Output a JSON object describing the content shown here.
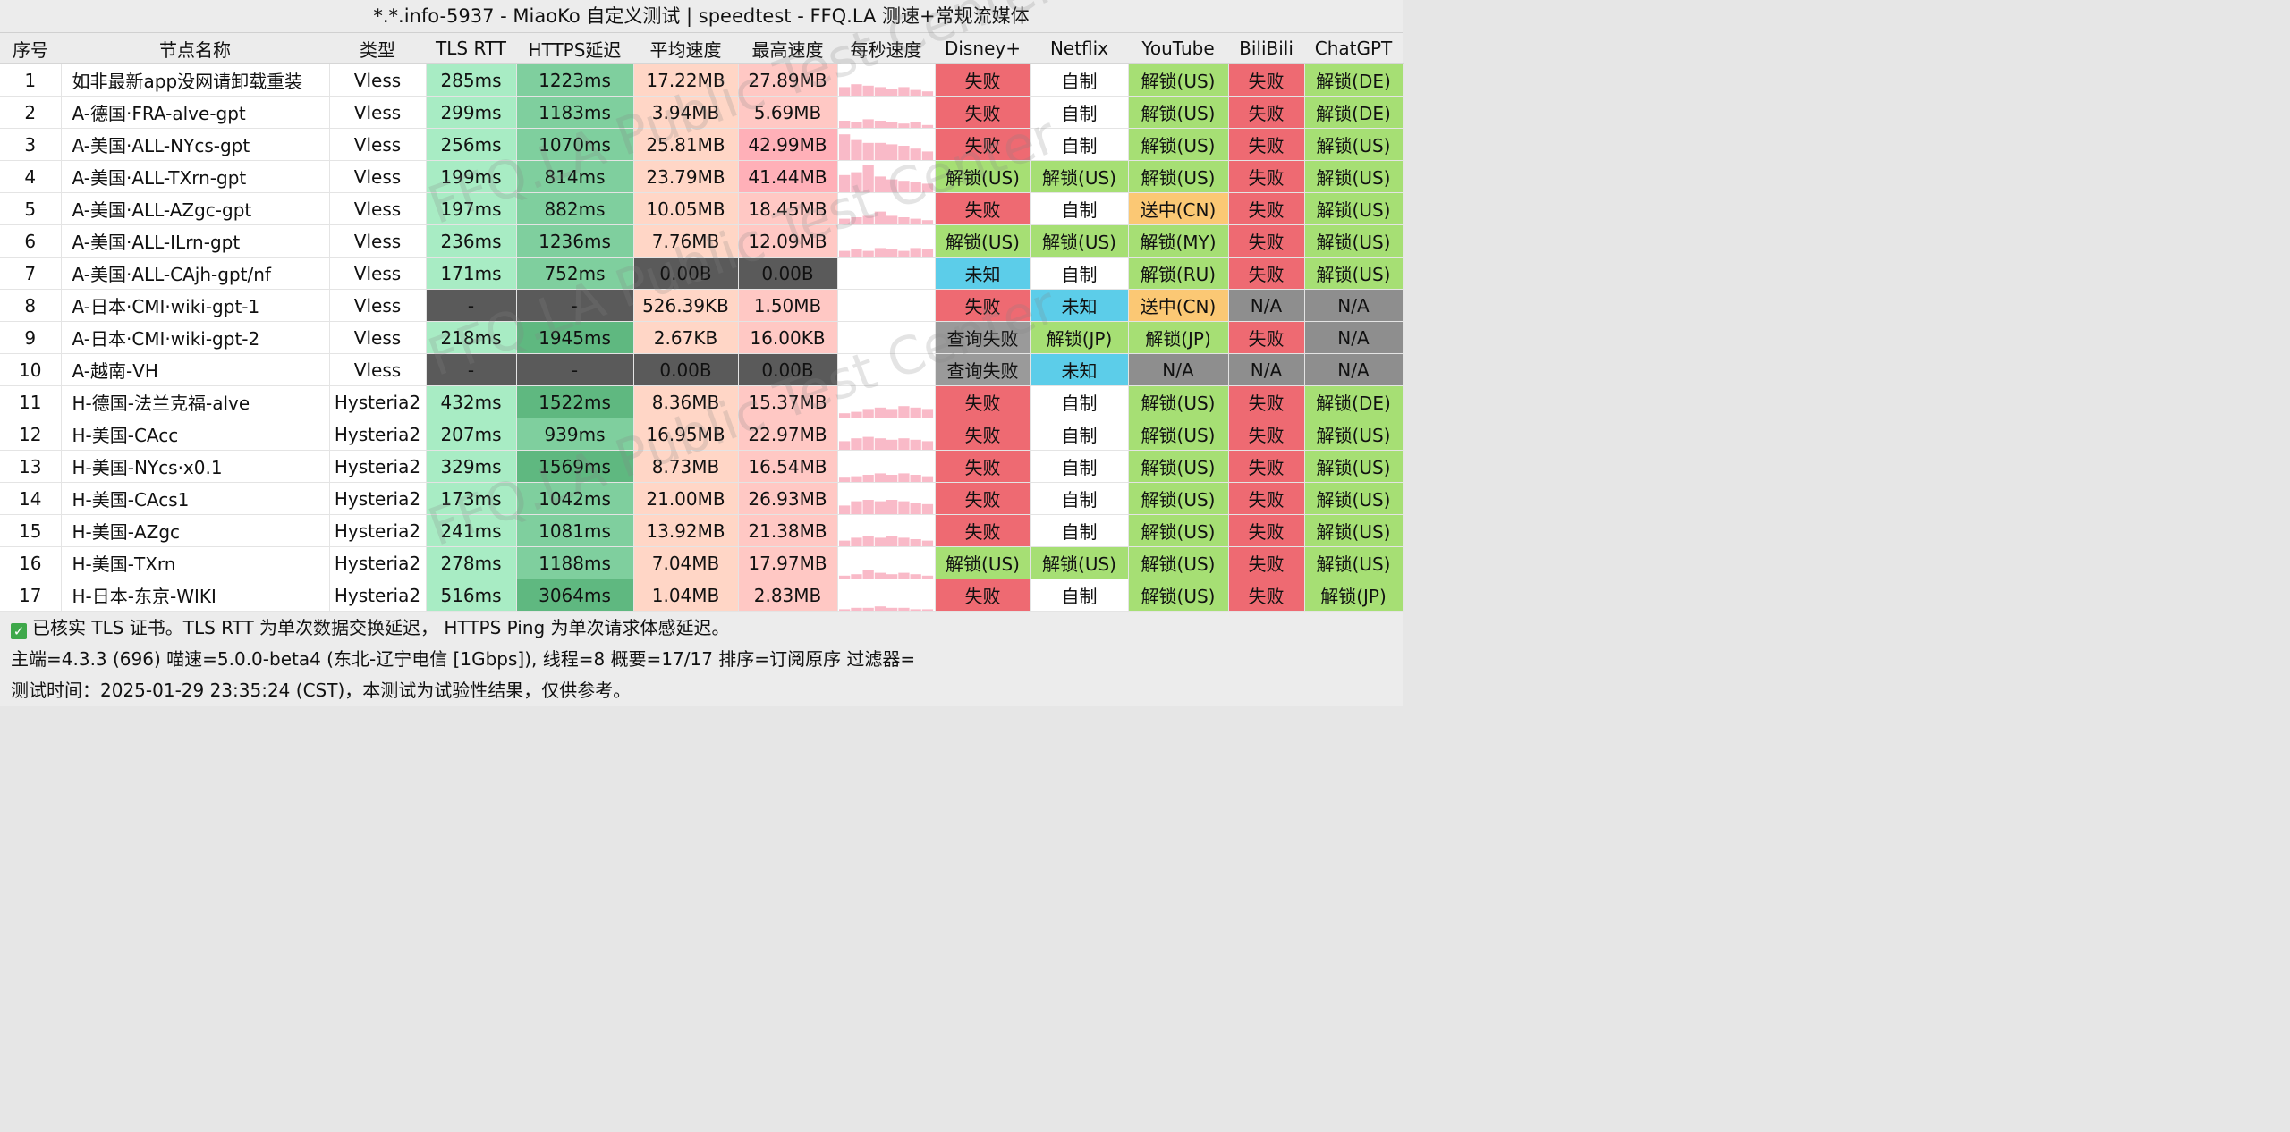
{
  "title": "*.*.info-5937 - MiaoKo 自定义测试 | speedtest - FFQ.LA 测速+常规流媒体",
  "headers": [
    "序号",
    "节点名称",
    "类型",
    "TLS RTT",
    "HTTPS延迟",
    "平均速度",
    "最高速度",
    "每秒速度",
    "Disney+",
    "Netflix",
    "YouTube",
    "BiliBili",
    "ChatGPT"
  ],
  "rows": [
    {
      "no": "1",
      "name": "如非最新app没网请卸载重装",
      "type": "Vless",
      "tls": "285ms",
      "https": "1223ms",
      "avg": "17.22MB",
      "max": "27.89MB",
      "per": [
        0.3,
        0.4,
        0.35,
        0.3,
        0.25,
        0.3,
        0.2,
        0.15
      ],
      "disney": "失败",
      "netflix": "自制",
      "youtube": "解锁(US)",
      "bili": "失败",
      "chatgpt": "解锁(DE)"
    },
    {
      "no": "2",
      "name": "A-德国·FRA-alve-gpt",
      "type": "Vless",
      "tls": "299ms",
      "https": "1183ms",
      "avg": "3.94MB",
      "max": "5.69MB",
      "per": [
        0.25,
        0.2,
        0.3,
        0.25,
        0.2,
        0.15,
        0.2,
        0.1
      ],
      "disney": "失败",
      "netflix": "自制",
      "youtube": "解锁(US)",
      "bili": "失败",
      "chatgpt": "解锁(DE)"
    },
    {
      "no": "3",
      "name": "A-美国·ALL-NYcs-gpt",
      "type": "Vless",
      "tls": "256ms",
      "https": "1070ms",
      "avg": "25.81MB",
      "max": "42.99MB",
      "per": [
        0.9,
        0.7,
        0.6,
        0.6,
        0.55,
        0.5,
        0.4,
        0.3
      ],
      "disney": "失败",
      "netflix": "自制",
      "youtube": "解锁(US)",
      "bili": "失败",
      "chatgpt": "解锁(US)"
    },
    {
      "no": "4",
      "name": "A-美国·ALL-TXrn-gpt",
      "type": "Vless",
      "tls": "199ms",
      "https": "814ms",
      "avg": "23.79MB",
      "max": "41.44MB",
      "per": [
        0.6,
        0.7,
        0.95,
        0.55,
        0.45,
        0.4,
        0.35,
        0.3
      ],
      "disney": "解锁(US)",
      "netflix": "解锁(US)",
      "youtube": "解锁(US)",
      "bili": "失败",
      "chatgpt": "解锁(US)"
    },
    {
      "no": "5",
      "name": "A-美国·ALL-AZgc-gpt",
      "type": "Vless",
      "tls": "197ms",
      "https": "882ms",
      "avg": "10.05MB",
      "max": "18.45MB",
      "per": [
        0.2,
        0.25,
        0.3,
        0.45,
        0.3,
        0.25,
        0.2,
        0.15
      ],
      "disney": "失败",
      "netflix": "自制",
      "youtube": "送中(CN)",
      "bili": "失败",
      "chatgpt": "解锁(US)"
    },
    {
      "no": "6",
      "name": "A-美国·ALL-ILrn-gpt",
      "type": "Vless",
      "tls": "236ms",
      "https": "1236ms",
      "avg": "7.76MB",
      "max": "12.09MB",
      "per": [
        0.2,
        0.25,
        0.2,
        0.3,
        0.25,
        0.2,
        0.3,
        0.25
      ],
      "disney": "解锁(US)",
      "netflix": "解锁(US)",
      "youtube": "解锁(MY)",
      "bili": "失败",
      "chatgpt": "解锁(US)"
    },
    {
      "no": "7",
      "name": "A-美国·ALL-CAjh-gpt/nf",
      "type": "Vless",
      "tls": "171ms",
      "https": "752ms",
      "avg": "0.00B",
      "max": "0.00B",
      "per": [],
      "disney": "未知",
      "netflix": "自制",
      "youtube": "解锁(RU)",
      "bili": "失败",
      "chatgpt": "解锁(US)"
    },
    {
      "no": "8",
      "name": "A-日本·CMI·wiki-gpt-1",
      "type": "Vless",
      "tls": "-",
      "https": "-",
      "avg": "526.39KB",
      "max": "1.50MB",
      "per": [],
      "disney": "失败",
      "netflix": "未知",
      "youtube": "送中(CN)",
      "bili": "N/A",
      "chatgpt": "N/A"
    },
    {
      "no": "9",
      "name": "A-日本·CMI·wiki-gpt-2",
      "type": "Vless",
      "tls": "218ms",
      "https": "1945ms",
      "avg": "2.67KB",
      "max": "16.00KB",
      "per": [],
      "disney": "查询失败",
      "netflix": "解锁(JP)",
      "youtube": "解锁(JP)",
      "bili": "失败",
      "chatgpt": "N/A"
    },
    {
      "no": "10",
      "name": "A-越南-VH",
      "type": "Vless",
      "tls": "-",
      "https": "-",
      "avg": "0.00B",
      "max": "0.00B",
      "per": [],
      "disney": "查询失败",
      "netflix": "未知",
      "youtube": "N/A",
      "bili": "N/A",
      "chatgpt": "N/A"
    },
    {
      "no": "11",
      "name": "H-德国-法兰克福-alve",
      "type": "Hysteria2",
      "tls": "432ms",
      "https": "1522ms",
      "avg": "8.36MB",
      "max": "15.37MB",
      "per": [
        0.15,
        0.2,
        0.3,
        0.35,
        0.3,
        0.4,
        0.35,
        0.3
      ],
      "disney": "失败",
      "netflix": "自制",
      "youtube": "解锁(US)",
      "bili": "失败",
      "chatgpt": "解锁(DE)"
    },
    {
      "no": "12",
      "name": "H-美国-CAcc",
      "type": "Hysteria2",
      "tls": "207ms",
      "https": "939ms",
      "avg": "16.95MB",
      "max": "22.97MB",
      "per": [
        0.3,
        0.4,
        0.45,
        0.4,
        0.35,
        0.4,
        0.35,
        0.3
      ],
      "disney": "失败",
      "netflix": "自制",
      "youtube": "解锁(US)",
      "bili": "失败",
      "chatgpt": "解锁(US)"
    },
    {
      "no": "13",
      "name": "H-美国-NYcs·x0.1",
      "type": "Hysteria2",
      "tls": "329ms",
      "https": "1569ms",
      "avg": "8.73MB",
      "max": "16.54MB",
      "per": [
        0.15,
        0.2,
        0.25,
        0.3,
        0.25,
        0.3,
        0.25,
        0.2
      ],
      "disney": "失败",
      "netflix": "自制",
      "youtube": "解锁(US)",
      "bili": "失败",
      "chatgpt": "解锁(US)"
    },
    {
      "no": "14",
      "name": "H-美国-CAcs1",
      "type": "Hysteria2",
      "tls": "173ms",
      "https": "1042ms",
      "avg": "21.00MB",
      "max": "26.93MB",
      "per": [
        0.3,
        0.45,
        0.5,
        0.45,
        0.5,
        0.45,
        0.4,
        0.35
      ],
      "disney": "失败",
      "netflix": "自制",
      "youtube": "解锁(US)",
      "bili": "失败",
      "chatgpt": "解锁(US)"
    },
    {
      "no": "15",
      "name": "H-美国-AZgc",
      "type": "Hysteria2",
      "tls": "241ms",
      "https": "1081ms",
      "avg": "13.92MB",
      "max": "21.38MB",
      "per": [
        0.2,
        0.3,
        0.35,
        0.3,
        0.35,
        0.3,
        0.25,
        0.2
      ],
      "disney": "失败",
      "netflix": "自制",
      "youtube": "解锁(US)",
      "bili": "失败",
      "chatgpt": "解锁(US)"
    },
    {
      "no": "16",
      "name": "H-美国-TXrn",
      "type": "Hysteria2",
      "tls": "278ms",
      "https": "1188ms",
      "avg": "7.04MB",
      "max": "17.97MB",
      "per": [
        0.1,
        0.15,
        0.3,
        0.2,
        0.15,
        0.2,
        0.15,
        0.1
      ],
      "disney": "解锁(US)",
      "netflix": "解锁(US)",
      "youtube": "解锁(US)",
      "bili": "失败",
      "chatgpt": "解锁(US)"
    },
    {
      "no": "17",
      "name": "H-日本-东京-WIKI",
      "type": "Hysteria2",
      "tls": "516ms",
      "https": "3064ms",
      "avg": "1.04MB",
      "max": "2.83MB",
      "per": [
        0.05,
        0.1,
        0.1,
        0.15,
        0.1,
        0.1,
        0.05,
        0.05
      ],
      "disney": "失败",
      "netflix": "自制",
      "youtube": "解锁(US)",
      "bili": "失败",
      "chatgpt": "解锁(JP)"
    }
  ],
  "footer": {
    "tls_note": "已核实 TLS 证书。TLS RTT 为单次数据交换延迟， HTTPS Ping 为单次请求体感延迟。",
    "info": "主端=4.3.3 (696) 喵速=5.0.0-beta4 (东北-辽宁电信 [1Gbps]), 线程=8 概要=17/17 排序=订阅原序 过滤器=",
    "time": "测试时间：2025-01-29 23:35:24 (CST)，本测试为试验性结果，仅供参考。"
  },
  "watermark": "FFQ.LA Public Test Center",
  "colors": {
    "tls": "#a8ecc4",
    "https": "#7fcf9e",
    "avg": "#ffd6c6",
    "max": "#ffc8c4",
    "fail": "#ee6a72",
    "unlock": "#a6df74",
    "pending": "#fbc874",
    "unknown": "#5ccde9",
    "query_fail": "#9a9a9a",
    "na": "#8e8e8e",
    "spark": "#f7a3b6"
  }
}
